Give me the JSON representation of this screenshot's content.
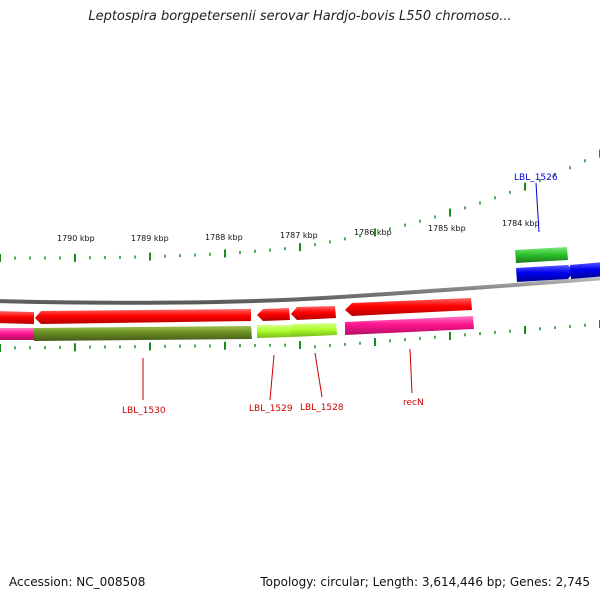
{
  "title": "Leptospira borgpetersenii serovar Hardjo-bovis L550 chromoso...",
  "axis": {
    "major_labels": [
      "1790 kbp",
      "1789 kbp",
      "1788 kbp",
      "1787 kbp",
      "1786 kbp",
      "1785 kbp",
      "1784 kbp"
    ]
  },
  "colors": {
    "backbone": "#7f7f7f",
    "tick": "#1a8c1a",
    "label_forward": "#0000cc",
    "label_reverse": "#cc0000",
    "red_feature": "#ff0000",
    "green_feature": "#2ec42e",
    "blue_feature": "#0000ee",
    "magenta_feature": "#ff1493",
    "olive_feature": "#6b8e23",
    "lime_feature": "#adff2f"
  },
  "gene_labels": [
    {
      "text": "LBL_1526",
      "strand": "forward"
    },
    {
      "text": "LBL_1530",
      "strand": "reverse"
    },
    {
      "text": "LBL_1529",
      "strand": "reverse"
    },
    {
      "text": "LBL_1528",
      "strand": "reverse"
    },
    {
      "text": "recN",
      "strand": "reverse"
    }
  ],
  "footer": {
    "accession": "Accession: NC_008508",
    "summary": "Topology: circular; Length: 3,614,446 bp; Genes: 2,745"
  }
}
